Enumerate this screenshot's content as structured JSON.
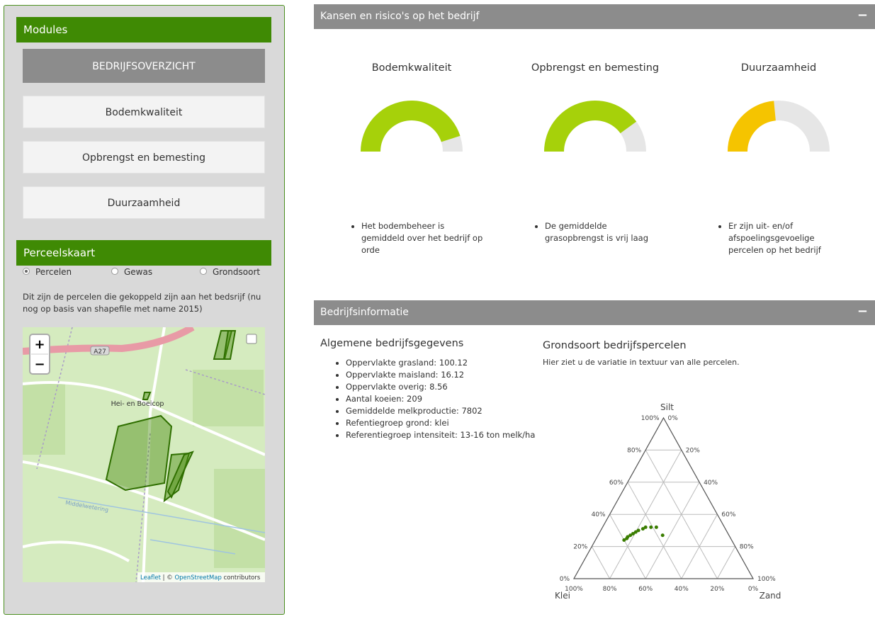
{
  "sidebar": {
    "modules_title": "Modules",
    "buttons": [
      "BEDRIJFSOVERZICHT",
      "Bodemkwaliteit",
      "Opbrengst en bemesting",
      "Duurzaamheid"
    ],
    "map_title": "Perceelskaart",
    "radios": [
      "Percelen",
      "Gewas",
      "Grondsoort"
    ],
    "map_description": "Dit zijn de percelen die gekoppeld zijn aan het bedsrijf (nu nog op basis van shapefile met name 2015)",
    "map": {
      "zoom_in": "+",
      "zoom_out": "−",
      "road": "A27",
      "place": "Hei- en Boeicop",
      "water": "Middelwetering",
      "attribution_leaflet": "Leaflet",
      "attribution_sep": " | © ",
      "attribution_osm": "OpenStreetMap",
      "attribution_rest": " contributors"
    }
  },
  "risks": {
    "title": "Kansen en risico's op het bedrijf",
    "collapse_icon": "−",
    "notes": [
      [
        "Het bodembeheer is gemiddeld over het bedrijf op orde"
      ],
      [
        "De gemiddelde grasopbrengst is vrij laag"
      ],
      [
        "Er zijn uit- en/of afspoelingsgevoelige percelen op het bedrijf"
      ]
    ]
  },
  "info": {
    "title": "Bedrijfsinformatie",
    "collapse_icon": "−",
    "general_title": "Algemene bedrijfsgegevens",
    "general_items": [
      "Oppervlakte grasland: 100.12",
      "Oppervlakte maisland: 16.12",
      "Oppervlakte overig: 8.56",
      "Aantal koeien: 209",
      "Gemiddelde melkproductie: 7802",
      "Refentiegroep grond: klei",
      "Referentiegroep intensiteit: 13-16 ton melk/ha"
    ]
  },
  "chart_data": [
    {
      "type": "gauge",
      "title": "Bodemkwaliteit",
      "value": 90,
      "ylim": [
        0,
        100
      ],
      "color": "#a6d10a"
    },
    {
      "type": "gauge",
      "title": "Opbrengst en bemesting",
      "value": 80,
      "ylim": [
        0,
        100
      ],
      "color": "#a6d10a"
    },
    {
      "type": "gauge",
      "title": "Duurzaamheid",
      "value": 47,
      "ylim": [
        0,
        100
      ],
      "color": "#f5c400"
    },
    {
      "type": "ternary",
      "title": "Grondsoort bedrijfspercelen",
      "subtitle": "Hier ziet u de variatie in textuur van alle percelen.",
      "axis_names": {
        "top": "Silt",
        "left": "Klei",
        "right": "Zand"
      },
      "silt_ticks": [
        {
          "value": 0,
          "label": "0%"
        },
        {
          "value": 20,
          "label": "20%"
        },
        {
          "value": 40,
          "label": "40%"
        },
        {
          "value": 60,
          "label": "60%"
        },
        {
          "value": 80,
          "label": "80%"
        },
        {
          "value": 100,
          "label": "100%"
        }
      ],
      "zand_ticks": [
        {
          "value": 0,
          "label": "0%"
        },
        {
          "value": 20,
          "label": "20%"
        },
        {
          "value": 40,
          "label": "40%"
        },
        {
          "value": 60,
          "label": "60%"
        },
        {
          "value": 80,
          "label": "80%"
        },
        {
          "value": 100,
          "label": "100%"
        }
      ],
      "klei_ticks": [
        {
          "value": 0,
          "label": "0%"
        },
        {
          "value": 20,
          "label": "20%"
        },
        {
          "value": 40,
          "label": "40%"
        },
        {
          "value": 60,
          "label": "60%"
        },
        {
          "value": 80,
          "label": "80%"
        },
        {
          "value": 100,
          "label": "100%"
        }
      ],
      "series": [
        {
          "color": "#3a7d00",
          "silt": [
            24,
            26,
            27,
            28,
            29,
            30,
            31,
            32,
            32,
            32,
            27,
            25
          ],
          "zand": [
            16,
            17,
            18,
            19,
            20,
            21,
            23,
            24,
            27,
            30,
            36,
            17
          ]
        }
      ]
    }
  ]
}
